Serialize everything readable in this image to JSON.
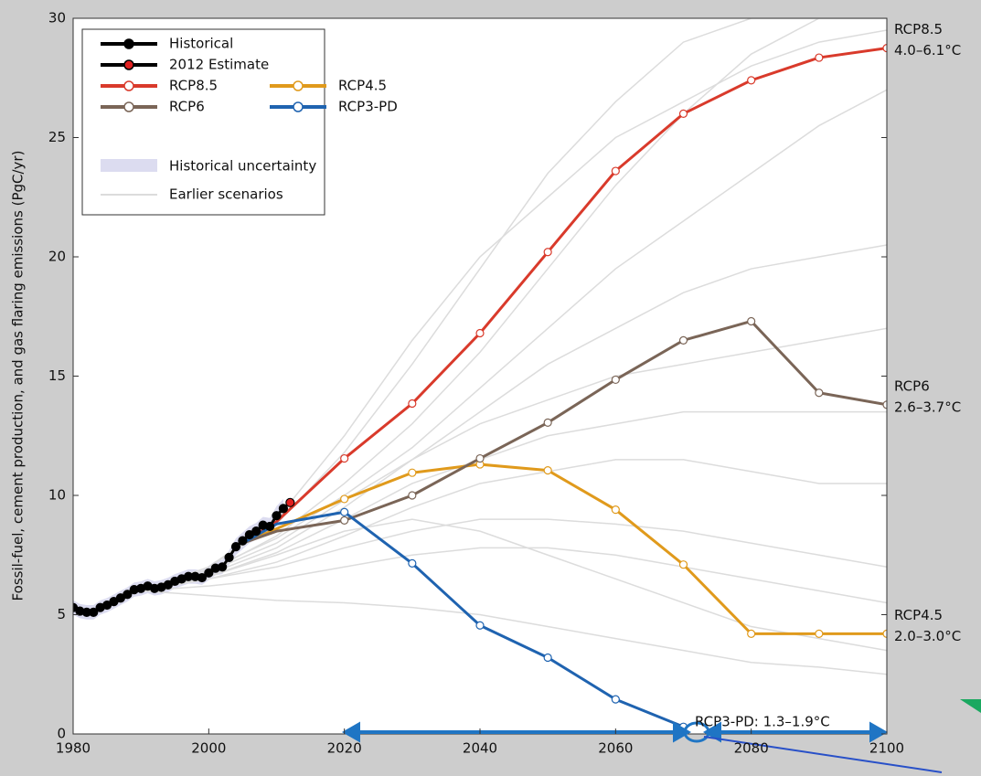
{
  "chart_data": {
    "type": "line",
    "ylabel": "Fossil-fuel, cement production, and gas flaring emissions (PgC/yr)",
    "xlim": [
      1980,
      2100
    ],
    "xticks": [
      1980,
      2000,
      2020,
      2040,
      2060,
      2080,
      2100
    ],
    "ylim": [
      0,
      30
    ],
    "yticks": [
      0,
      5,
      10,
      15,
      20,
      25,
      30
    ],
    "legend": "upper left",
    "uncertainty": {
      "name": "Historical uncertainty",
      "color": "#dcdcf0",
      "x": [
        1980,
        1981,
        1982,
        1983,
        1984,
        1985,
        1986,
        1987,
        1988,
        1989,
        1990,
        1991,
        1992,
        1993,
        1994,
        1995,
        1996,
        1997,
        1998,
        1999,
        2000,
        2001,
        2002,
        2003,
        2004,
        2005,
        2006,
        2007,
        2008,
        2009,
        2010,
        2011
      ],
      "lower": [
        5.0,
        4.85,
        4.8,
        4.8,
        5.0,
        5.1,
        5.25,
        5.4,
        5.55,
        5.75,
        5.8,
        5.9,
        5.8,
        5.85,
        5.95,
        6.1,
        6.2,
        6.3,
        6.3,
        6.25,
        6.45,
        6.65,
        6.7,
        7.1,
        7.5,
        7.75,
        8.0,
        8.15,
        8.4,
        8.35,
        8.75,
        9.05
      ],
      "upper": [
        5.6,
        5.45,
        5.4,
        5.4,
        5.6,
        5.7,
        5.85,
        6.0,
        6.15,
        6.35,
        6.4,
        6.5,
        6.4,
        6.45,
        6.55,
        6.7,
        6.8,
        6.9,
        6.9,
        6.85,
        7.05,
        7.25,
        7.3,
        7.7,
        8.2,
        8.45,
        8.7,
        8.85,
        9.1,
        9.05,
        9.55,
        9.85
      ]
    },
    "earlier": {
      "name": "Earlier scenarios",
      "color": "#dcdcdc",
      "x": [
        1990,
        2000,
        2010,
        2020,
        2030,
        2040,
        2050,
        2060,
        2070,
        2080,
        2090,
        2100
      ],
      "lines": [
        [
          6,
          6.8,
          8.3,
          10.5,
          13,
          16,
          19.5,
          23,
          26,
          28.5,
          30,
          30
        ],
        [
          6,
          7,
          8.8,
          11.8,
          15.5,
          19.5,
          23.5,
          26.5,
          29,
          30,
          30,
          30
        ],
        [
          6,
          6.9,
          8.2,
          10,
          12,
          14.5,
          17,
          19.5,
          21.5,
          23.5,
          25.5,
          27
        ],
        [
          6,
          6.7,
          7.8,
          9.5,
          11.5,
          13.5,
          15.5,
          17,
          18.5,
          19.5,
          20,
          20.5
        ],
        [
          6,
          6.8,
          8,
          9.8,
          11.5,
          13,
          14,
          15,
          15.5,
          16,
          16.5,
          17
        ],
        [
          6,
          6.6,
          7.6,
          9,
          10.5,
          11.5,
          12.5,
          13,
          13.5,
          13.5,
          13.5,
          13.5
        ],
        [
          6,
          6.5,
          7.2,
          8.3,
          9.5,
          10.5,
          11,
          11.5,
          11.5,
          11,
          10.5,
          10.5
        ],
        [
          6,
          6.5,
          7,
          7.8,
          8.5,
          9,
          9,
          8.8,
          8.5,
          8,
          7.5,
          7
        ],
        [
          6,
          6.2,
          6.5,
          7,
          7.5,
          7.8,
          7.8,
          7.5,
          7,
          6.5,
          6,
          5.5
        ],
        [
          6,
          5.8,
          5.6,
          5.5,
          5.3,
          5,
          4.5,
          4,
          3.5,
          3,
          2.8,
          2.5
        ],
        [
          6,
          6.6,
          7.5,
          8.5,
          9,
          8.5,
          7.5,
          6.5,
          5.5,
          4.5,
          4,
          3.5
        ],
        [
          6,
          7,
          9,
          12.5,
          16.5,
          20,
          22.5,
          25,
          26.5,
          28,
          29,
          29.5
        ]
      ]
    },
    "series": [
      {
        "name": "Historical",
        "color": "#000000",
        "x": [
          1980,
          1981,
          1982,
          1983,
          1984,
          1985,
          1986,
          1987,
          1988,
          1989,
          1990,
          1991,
          1992,
          1993,
          1994,
          1995,
          1996,
          1997,
          1998,
          1999,
          2000,
          2001,
          2002,
          2003,
          2004,
          2005,
          2006,
          2007,
          2008,
          2009,
          2010,
          2011
        ],
        "values": [
          5.3,
          5.15,
          5.1,
          5.1,
          5.3,
          5.4,
          5.55,
          5.7,
          5.85,
          6.05,
          6.1,
          6.2,
          6.1,
          6.15,
          6.25,
          6.4,
          6.5,
          6.6,
          6.6,
          6.55,
          6.75,
          6.95,
          7.0,
          7.4,
          7.85,
          8.1,
          8.35,
          8.5,
          8.75,
          8.7,
          9.15,
          9.45
        ]
      },
      {
        "name": "2012 Estimate",
        "color": "#000000",
        "marker_fill": "#e02020",
        "x": [
          2012
        ],
        "values": [
          9.7
        ]
      },
      {
        "name": "RCP8.5",
        "color": "#d93a2b",
        "labels": [
          "RCP8.5",
          "4.0–6.1°C"
        ],
        "x": [
          2005,
          2010,
          2020,
          2030,
          2040,
          2050,
          2060,
          2070,
          2080,
          2090,
          2100
        ],
        "values": [
          8.0,
          8.9,
          11.55,
          13.85,
          16.8,
          20.2,
          23.6,
          26.0,
          27.4,
          28.35,
          28.75
        ]
      },
      {
        "name": "RCP4.5",
        "color": "#e09a1c",
        "labels": [
          "RCP4.5",
          "2.0–3.0°C"
        ],
        "x": [
          2005,
          2010,
          2020,
          2030,
          2040,
          2050,
          2060,
          2070,
          2080,
          2090,
          2100
        ],
        "values": [
          8.0,
          8.6,
          9.85,
          10.95,
          11.3,
          11.05,
          9.4,
          7.1,
          4.2,
          4.2,
          4.2
        ]
      },
      {
        "name": "RCP6",
        "color": "#7a6557",
        "labels": [
          "RCP6",
          "2.6–3.7°C"
        ],
        "x": [
          2005,
          2010,
          2020,
          2030,
          2040,
          2050,
          2060,
          2070,
          2080,
          2090,
          2100
        ],
        "values": [
          8.0,
          8.5,
          8.95,
          10.0,
          11.55,
          13.05,
          14.85,
          16.5,
          17.3,
          14.3,
          13.8
        ]
      },
      {
        "name": "RCP3-PD",
        "color": "#1f63b0",
        "labels": [
          "RCP3-PD: 1.3–1.9°C"
        ],
        "x": [
          2005,
          2010,
          2020,
          2030,
          2040,
          2050,
          2060,
          2070,
          2080,
          2090,
          2100
        ],
        "values": [
          8.0,
          8.8,
          9.3,
          7.15,
          4.55,
          3.2,
          1.45,
          0.3,
          null,
          null,
          null
        ]
      }
    ]
  }
}
